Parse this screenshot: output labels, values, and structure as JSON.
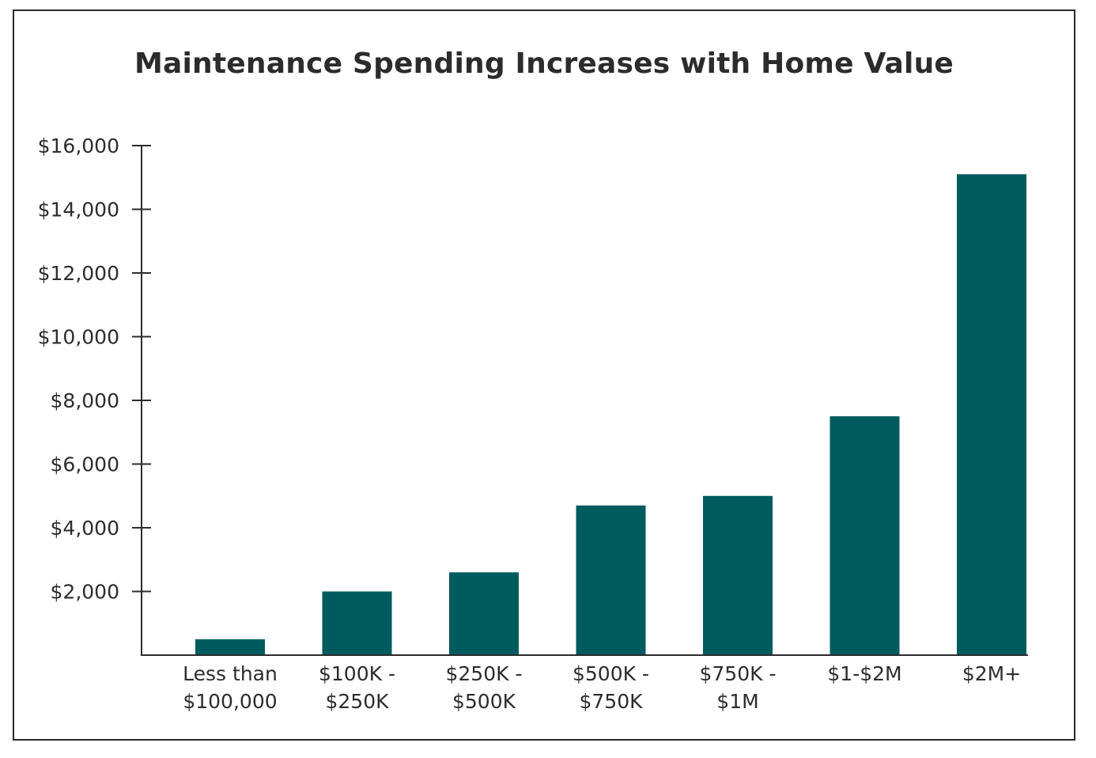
{
  "chart_data": {
    "type": "bar",
    "title": "Maintenance Spending Increases with Home Value",
    "xlabel": "",
    "ylabel": "",
    "categories": [
      [
        "Less than",
        "$100,000"
      ],
      [
        "$100K -",
        "$250K"
      ],
      [
        "$250K -",
        "$500K"
      ],
      [
        "$500K -",
        "$750K"
      ],
      [
        "$750K -",
        "$1M"
      ],
      [
        "$1-$2M"
      ],
      [
        "$2M+"
      ]
    ],
    "values": [
      500,
      2000,
      2600,
      4700,
      5000,
      7500,
      15100
    ],
    "ylim": [
      0,
      16000
    ],
    "yticks": [
      2000,
      4000,
      6000,
      8000,
      10000,
      12000,
      14000,
      16000
    ],
    "ytick_labels": [
      "$2,000",
      "$4,000",
      "$6,000",
      "$8,000",
      "$10,000",
      "$12,000",
      "$14,000",
      "$16,000"
    ],
    "grid": false,
    "legend": "none",
    "bar_color": "#005b5f",
    "axis_color": "#2c2c2c"
  }
}
